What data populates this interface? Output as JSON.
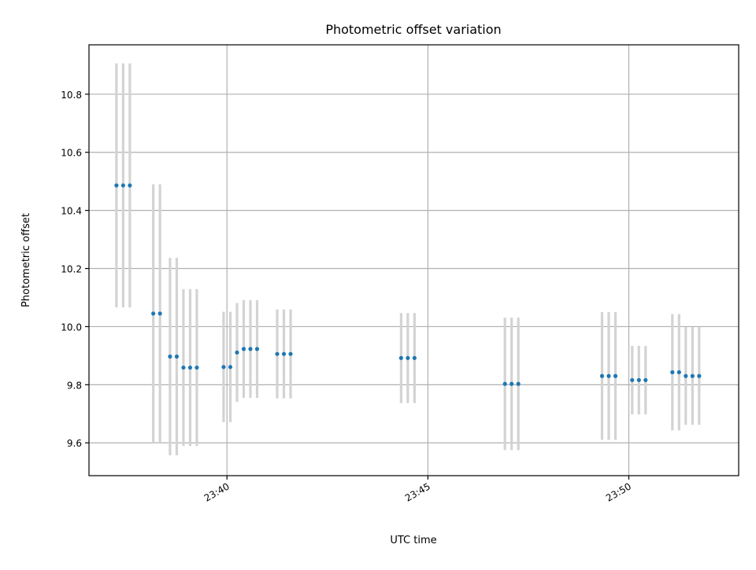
{
  "chart_data": {
    "type": "scatter",
    "title": "Photometric offset variation",
    "xlabel": "UTC time",
    "ylabel": "Photometric offset",
    "xlim": [
      "23:36:34",
      "23:52:44"
    ],
    "ylim": [
      9.487,
      10.97
    ],
    "xticks": [
      "23:40",
      "23:45",
      "23:50"
    ],
    "yticks": [
      9.6,
      9.8,
      10.0,
      10.2,
      10.4,
      10.6,
      10.8
    ],
    "ytick_labels": [
      "9.6",
      "9.8",
      "10.0",
      "10.2",
      "10.4",
      "10.6",
      "10.8"
    ],
    "grid": true,
    "series": [
      {
        "marker_color": "#1f77b4",
        "errorbar_color": "#d3d3d3",
        "points": [
          {
            "x": "23:37:15",
            "y": 10.486,
            "err": 0.42
          },
          {
            "x": "23:37:25",
            "y": 10.486,
            "err": 0.42
          },
          {
            "x": "23:37:35",
            "y": 10.486,
            "err": 0.42
          },
          {
            "x": "23:38:10",
            "y": 10.045,
            "err": 0.445
          },
          {
            "x": "23:38:20",
            "y": 10.045,
            "err": 0.445
          },
          {
            "x": "23:38:35",
            "y": 9.897,
            "err": 0.34
          },
          {
            "x": "23:38:45",
            "y": 9.897,
            "err": 0.34
          },
          {
            "x": "23:38:55",
            "y": 9.859,
            "err": 0.27
          },
          {
            "x": "23:39:05",
            "y": 9.859,
            "err": 0.27
          },
          {
            "x": "23:39:15",
            "y": 9.859,
            "err": 0.27
          },
          {
            "x": "23:39:55",
            "y": 9.861,
            "err": 0.19
          },
          {
            "x": "23:40:05",
            "y": 9.861,
            "err": 0.19
          },
          {
            "x": "23:40:15",
            "y": 9.911,
            "err": 0.17
          },
          {
            "x": "23:40:25",
            "y": 9.923,
            "err": 0.168
          },
          {
            "x": "23:40:35",
            "y": 9.923,
            "err": 0.168
          },
          {
            "x": "23:40:45",
            "y": 9.923,
            "err": 0.168
          },
          {
            "x": "23:41:15",
            "y": 9.906,
            "err": 0.153
          },
          {
            "x": "23:41:25",
            "y": 9.906,
            "err": 0.153
          },
          {
            "x": "23:41:35",
            "y": 9.906,
            "err": 0.153
          },
          {
            "x": "23:44:20",
            "y": 9.892,
            "err": 0.155
          },
          {
            "x": "23:44:30",
            "y": 9.892,
            "err": 0.155
          },
          {
            "x": "23:44:40",
            "y": 9.892,
            "err": 0.155
          },
          {
            "x": "23:46:55",
            "y": 9.803,
            "err": 0.228
          },
          {
            "x": "23:47:05",
            "y": 9.803,
            "err": 0.228
          },
          {
            "x": "23:47:15",
            "y": 9.803,
            "err": 0.228
          },
          {
            "x": "23:49:20",
            "y": 9.83,
            "err": 0.22
          },
          {
            "x": "23:49:30",
            "y": 9.83,
            "err": 0.22
          },
          {
            "x": "23:49:40",
            "y": 9.83,
            "err": 0.22
          },
          {
            "x": "23:50:05",
            "y": 9.816,
            "err": 0.118
          },
          {
            "x": "23:50:15",
            "y": 9.816,
            "err": 0.118
          },
          {
            "x": "23:50:25",
            "y": 9.816,
            "err": 0.118
          },
          {
            "x": "23:51:05",
            "y": 9.843,
            "err": 0.2
          },
          {
            "x": "23:51:15",
            "y": 9.843,
            "err": 0.2
          },
          {
            "x": "23:51:25",
            "y": 9.83,
            "err": 0.168
          },
          {
            "x": "23:51:35",
            "y": 9.83,
            "err": 0.168
          },
          {
            "x": "23:51:45",
            "y": 9.83,
            "err": 0.168
          }
        ]
      }
    ]
  }
}
